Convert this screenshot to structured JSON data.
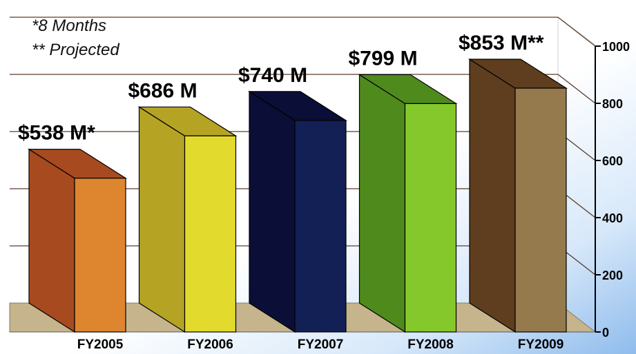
{
  "notes": {
    "line1": "*8 Months",
    "line2": "** Projected"
  },
  "chart_data": {
    "type": "bar",
    "categories": [
      "FY2005",
      "FY2006",
      "FY2007",
      "FY2008",
      "FY2009"
    ],
    "values": [
      538,
      686,
      740,
      799,
      853
    ],
    "data_labels": [
      "$538 M*",
      "$686 M",
      "$740 M",
      "$799 M",
      "$853 M**"
    ],
    "y_ticks": [
      "0",
      "200",
      "400",
      "600",
      "800",
      "1000"
    ],
    "ylim": [
      0,
      1000
    ],
    "title": "",
    "xlabel": "",
    "ylabel": "",
    "grid": true,
    "style": "3d-bar",
    "colors": {
      "FY2005": {
        "front": "#DE8530",
        "side": "#A84A1F"
      },
      "FY2006": {
        "front": "#E2DA2C",
        "side": "#B5A324"
      },
      "FY2007": {
        "front": "#132056",
        "side": "#0B0E36"
      },
      "FY2008": {
        "front": "#85C82B",
        "side": "#4F8A1D"
      },
      "FY2009": {
        "front": "#957A4D",
        "side": "#5E3E1F"
      }
    },
    "floor_color": "#C6B48C",
    "gridline_color": "#5A3A28"
  }
}
